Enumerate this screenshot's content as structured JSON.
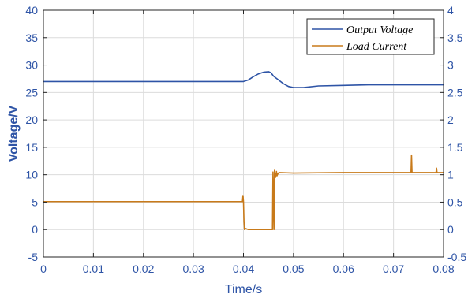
{
  "chart_data": {
    "type": "line",
    "xlabel": "Time/s",
    "ylabel": "Voltage/V",
    "y2label": "",
    "xlim": [
      0,
      0.08
    ],
    "ylim": [
      -5,
      40
    ],
    "y2lim": [
      -0.5,
      4
    ],
    "x_ticks": [
      "0",
      "0.01",
      "0.02",
      "0.03",
      "0.04",
      "0.05",
      "0.06",
      "0.07",
      "0.08"
    ],
    "y_ticks": [
      "-5",
      "0",
      "5",
      "10",
      "15",
      "20",
      "25",
      "30",
      "35",
      "40"
    ],
    "y2_ticks": [
      "-0.5",
      "0",
      "0.5",
      "1",
      "1.5",
      "2",
      "2.5",
      "3",
      "3.5",
      "4"
    ],
    "grid": true,
    "legend_position": "top-right",
    "series": [
      {
        "name": "Output Voltage",
        "axis": "left",
        "color": "#2e54a6",
        "x": [
          0,
          0.01,
          0.02,
          0.03,
          0.039,
          0.04,
          0.041,
          0.042,
          0.043,
          0.044,
          0.045,
          0.0455,
          0.046,
          0.047,
          0.048,
          0.049,
          0.05,
          0.052,
          0.055,
          0.06,
          0.065,
          0.07,
          0.075,
          0.08
        ],
        "y": [
          27.0,
          27.0,
          27.0,
          27.0,
          27.0,
          27.0,
          27.3,
          27.9,
          28.4,
          28.7,
          28.8,
          28.6,
          28.0,
          27.3,
          26.6,
          26.1,
          25.9,
          25.9,
          26.2,
          26.3,
          26.4,
          26.4,
          26.4,
          26.4
        ]
      },
      {
        "name": "Load Current",
        "axis": "right",
        "color": "#c87a1a",
        "x": [
          0,
          0.01,
          0.02,
          0.03,
          0.0398,
          0.0399,
          0.04,
          0.0401,
          0.0402,
          0.0404,
          0.041,
          0.043,
          0.045,
          0.0458,
          0.0459,
          0.0461,
          0.0462,
          0.0464,
          0.0466,
          0.0467,
          0.0469,
          0.0471,
          0.05,
          0.06,
          0.07,
          0.0735,
          0.0736,
          0.0737,
          0.075,
          0.0785,
          0.0786,
          0.0787,
          0.08
        ],
        "y": [
          0.51,
          0.51,
          0.51,
          0.51,
          0.51,
          0.62,
          0.51,
          0.15,
          0.0,
          0.02,
          0.0,
          0.0,
          0.0,
          0.0,
          1.05,
          0.0,
          1.08,
          0.95,
          1.06,
          0.98,
          1.02,
          1.04,
          1.03,
          1.04,
          1.04,
          1.04,
          1.36,
          1.04,
          1.04,
          1.04,
          1.12,
          1.04,
          1.04
        ]
      }
    ]
  }
}
